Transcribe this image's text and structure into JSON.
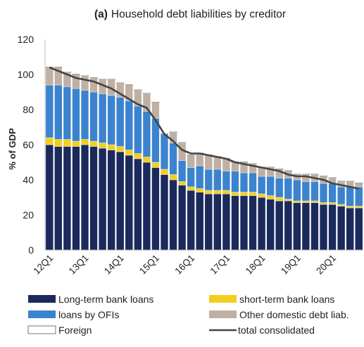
{
  "chart_data": {
    "type": "bar",
    "stacked": true,
    "title_tag": "(a)",
    "title": "Household debt liabilities by creditor",
    "xlabel": "",
    "ylabel": "% of GDP",
    "ylim": [
      0,
      120
    ],
    "yticks": [
      "0",
      "20",
      "40",
      "60",
      "80",
      "100",
      "120"
    ],
    "grid": false,
    "legend_position": "bottom",
    "x_tick_labels": [
      "12Q1",
      "13Q1",
      "14Q1",
      "15Q1",
      "16Q1",
      "17Q1",
      "18Q1",
      "19Q1",
      "20Q1"
    ],
    "categories": [
      "12Q1",
      "12Q2",
      "12Q3",
      "12Q4",
      "13Q1",
      "13Q2",
      "13Q3",
      "13Q4",
      "14Q1",
      "14Q2",
      "14Q3",
      "14Q4",
      "15Q1",
      "15Q2",
      "15Q3",
      "15Q4",
      "16Q1",
      "16Q2",
      "16Q3",
      "16Q4",
      "17Q1",
      "17Q2",
      "17Q3",
      "17Q4",
      "18Q1",
      "18Q2",
      "18Q3",
      "18Q4",
      "19Q1",
      "19Q2",
      "19Q3",
      "19Q4",
      "20Q1",
      "20Q2",
      "20Q3",
      "20Q4"
    ],
    "series": [
      {
        "name": "Long-term bank loans",
        "color": "#1b2a5c",
        "values": [
          60,
          59,
          59,
          59,
          60,
          59,
          58,
          57,
          56,
          54,
          52,
          50,
          47,
          43,
          40,
          37,
          34,
          33,
          32,
          32,
          32,
          31,
          31,
          31,
          30,
          29,
          28,
          28,
          27,
          27,
          27,
          26,
          26,
          25,
          24,
          24
        ]
      },
      {
        "name": "short-term bank loans",
        "color": "#f2cf1f",
        "values": [
          4,
          4,
          4,
          3,
          3,
          3,
          3,
          3,
          3,
          3,
          3,
          3,
          3,
          3,
          3,
          2,
          2,
          2,
          2,
          2,
          2,
          2,
          2,
          2,
          2,
          2,
          2,
          1,
          1,
          1,
          1,
          1,
          1,
          1,
          1,
          1
        ]
      },
      {
        "name": "loans by OFIs",
        "color": "#3c83cf",
        "values": [
          30,
          31,
          30,
          30,
          28,
          28,
          28,
          28,
          28,
          28,
          27,
          26,
          25,
          20,
          18,
          12,
          11,
          13,
          12,
          12,
          11,
          12,
          11,
          11,
          10,
          11,
          11,
          12,
          12,
          11,
          11,
          11,
          11,
          10,
          11,
          11
        ]
      },
      {
        "name": "Other domestic debt liab.",
        "color": "#bfb0a3",
        "values": [
          10,
          10,
          8,
          8,
          8,
          8,
          8,
          9,
          8,
          9,
          9,
          10,
          9,
          0,
          6,
          10,
          7,
          7,
          8,
          7,
          7,
          5,
          6,
          5,
          5,
          5,
          5,
          4,
          3,
          4,
          4,
          4,
          3,
          3,
          3,
          2
        ]
      },
      {
        "name": "Foreign",
        "color": "#ffffff",
        "values": [
          0.3,
          0.3,
          0.3,
          0.3,
          0.3,
          0.3,
          0.3,
          0.3,
          0.3,
          0.3,
          0.3,
          0.3,
          0.3,
          0.3,
          0.3,
          0.3,
          0.3,
          0.3,
          0.3,
          0.3,
          0.3,
          0.3,
          0.3,
          0.3,
          0.3,
          0.3,
          0.3,
          0.3,
          0.3,
          0.3,
          0.3,
          0.3,
          0.3,
          0.3,
          0.3,
          0.3
        ]
      }
    ],
    "line": {
      "name": "total consolidated",
      "color": "#444444",
      "values": [
        104,
        102,
        100,
        98,
        97,
        96,
        94,
        92,
        89,
        86,
        83,
        81,
        74,
        66,
        62,
        57,
        55,
        55,
        54,
        53,
        52,
        50,
        49,
        48,
        47,
        46,
        45,
        43,
        42,
        42,
        41,
        40,
        38,
        37,
        36,
        35
      ]
    }
  }
}
